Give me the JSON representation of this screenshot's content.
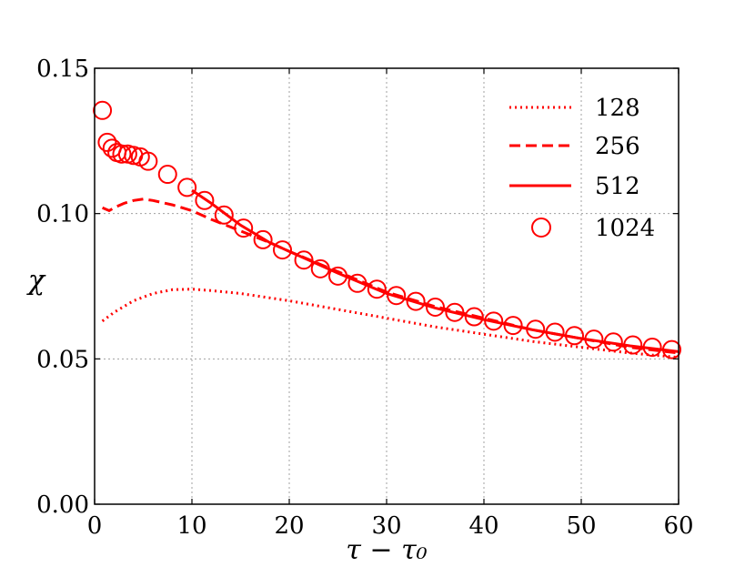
{
  "chart_data": {
    "type": "line",
    "xlabel": "τ − τ₀",
    "ylabel": "χ",
    "xlim": [
      0,
      60
    ],
    "ylim": [
      0,
      0.15
    ],
    "xticks": [
      0,
      10,
      20,
      30,
      40,
      50,
      60
    ],
    "yticks": [
      0.0,
      0.05,
      0.1,
      0.15
    ],
    "xtick_labels": [
      "0",
      "10",
      "20",
      "30",
      "40",
      "50",
      "60"
    ],
    "ytick_labels": [
      "0.00",
      "0.05",
      "0.10",
      "0.15"
    ],
    "grid": true,
    "legend_position": "top-right",
    "color": "#ff0000",
    "series": [
      {
        "name": "128",
        "style": "dotted",
        "x": [
          0.8,
          2,
          4,
          6,
          8,
          10,
          12,
          15,
          20,
          25,
          30,
          35,
          40,
          45,
          50,
          55,
          60
        ],
        "y": [
          0.063,
          0.066,
          0.07,
          0.0725,
          0.0738,
          0.074,
          0.0735,
          0.0725,
          0.07,
          0.067,
          0.064,
          0.061,
          0.0585,
          0.056,
          0.054,
          0.052,
          0.0505
        ]
      },
      {
        "name": "256",
        "style": "dashed",
        "x": [
          0.8,
          1.5,
          2,
          3,
          4,
          5,
          6,
          8,
          10,
          12,
          15,
          18,
          20,
          25,
          30,
          35,
          40,
          45,
          50,
          55,
          60
        ],
        "y": [
          0.102,
          0.101,
          0.102,
          0.1035,
          0.1045,
          0.105,
          0.1045,
          0.103,
          0.101,
          0.098,
          0.094,
          0.09,
          0.087,
          0.08,
          0.073,
          0.068,
          0.064,
          0.06,
          0.057,
          0.054,
          0.052
        ]
      },
      {
        "name": "512",
        "style": "solid",
        "x": [
          10,
          12,
          15,
          18,
          20,
          25,
          30,
          35,
          40,
          45,
          50,
          55,
          60
        ],
        "y": [
          0.108,
          0.1035,
          0.096,
          0.09,
          0.087,
          0.0795,
          0.0725,
          0.0675,
          0.0635,
          0.06,
          0.057,
          0.0545,
          0.0525
        ]
      },
      {
        "name": "1024",
        "style": "circles",
        "x": [
          0.8,
          1.3,
          1.8,
          2.3,
          2.8,
          3.4,
          4.0,
          4.7,
          5.5,
          7.5,
          9.5,
          11.3,
          13.3,
          15.3,
          17.3,
          19.3,
          21.5,
          23.2,
          25.0,
          27.0,
          29.0,
          31.0,
          33.0,
          35.0,
          37.0,
          39.0,
          41.0,
          43.0,
          45.3,
          47.3,
          49.3,
          51.3,
          53.3,
          55.3,
          57.3,
          59.3
        ],
        "y": [
          0.1355,
          0.1245,
          0.1225,
          0.121,
          0.1205,
          0.1205,
          0.12,
          0.1195,
          0.118,
          0.1135,
          0.109,
          0.1045,
          0.0995,
          0.095,
          0.091,
          0.0875,
          0.084,
          0.081,
          0.0785,
          0.076,
          0.074,
          0.0718,
          0.0698,
          0.0678,
          0.066,
          0.0645,
          0.063,
          0.0615,
          0.0602,
          0.0592,
          0.058,
          0.0568,
          0.0558,
          0.0548,
          0.054,
          0.0532
        ]
      }
    ]
  }
}
